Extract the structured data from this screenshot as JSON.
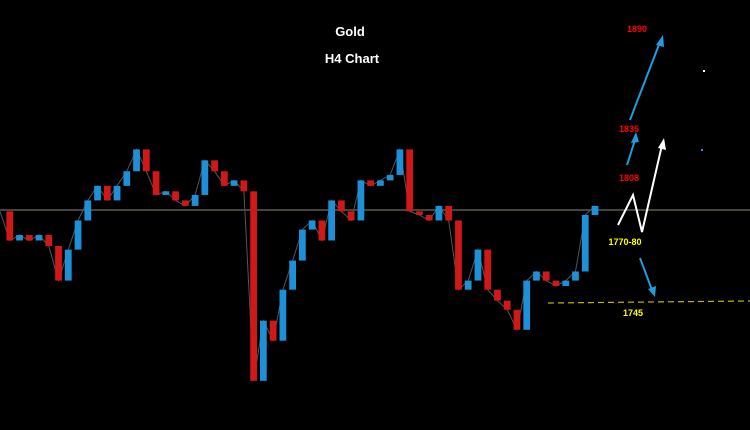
{
  "chart_data": {
    "type": "candle-line",
    "title": "Gold",
    "subtitle": "H4 Chart",
    "values": [
      1790,
      1774,
      1777,
      1774,
      1777,
      1771,
      1752,
      1769,
      1785,
      1796,
      1804,
      1796,
      1804,
      1812,
      1824,
      1812,
      1799,
      1801,
      1796,
      1793,
      1799,
      1818,
      1812,
      1804,
      1807,
      1801,
      1697,
      1730,
      1719,
      1747,
      1763,
      1780,
      1785,
      1774,
      1796,
      1790,
      1785,
      1807,
      1804,
      1807,
      1810,
      1824,
      1790,
      1788,
      1785,
      1793,
      1785,
      1747,
      1752,
      1769,
      1747,
      1741,
      1736,
      1725,
      1752,
      1757,
      1752,
      1749,
      1752,
      1757,
      1788,
      1793
    ],
    "ylim": [
      1670,
      1906
    ],
    "up_color": "#1e90d8",
    "down_color": "#d01818",
    "annotations": [
      {
        "text": "1890",
        "color": "#ff0000"
      },
      {
        "text": "1835",
        "color": "#ff0000"
      },
      {
        "text": "1808",
        "color": "#ff0000"
      },
      {
        "text": "1770-80",
        "color": "#ffff00"
      },
      {
        "text": "1745",
        "color": "#ffff00"
      }
    ]
  }
}
